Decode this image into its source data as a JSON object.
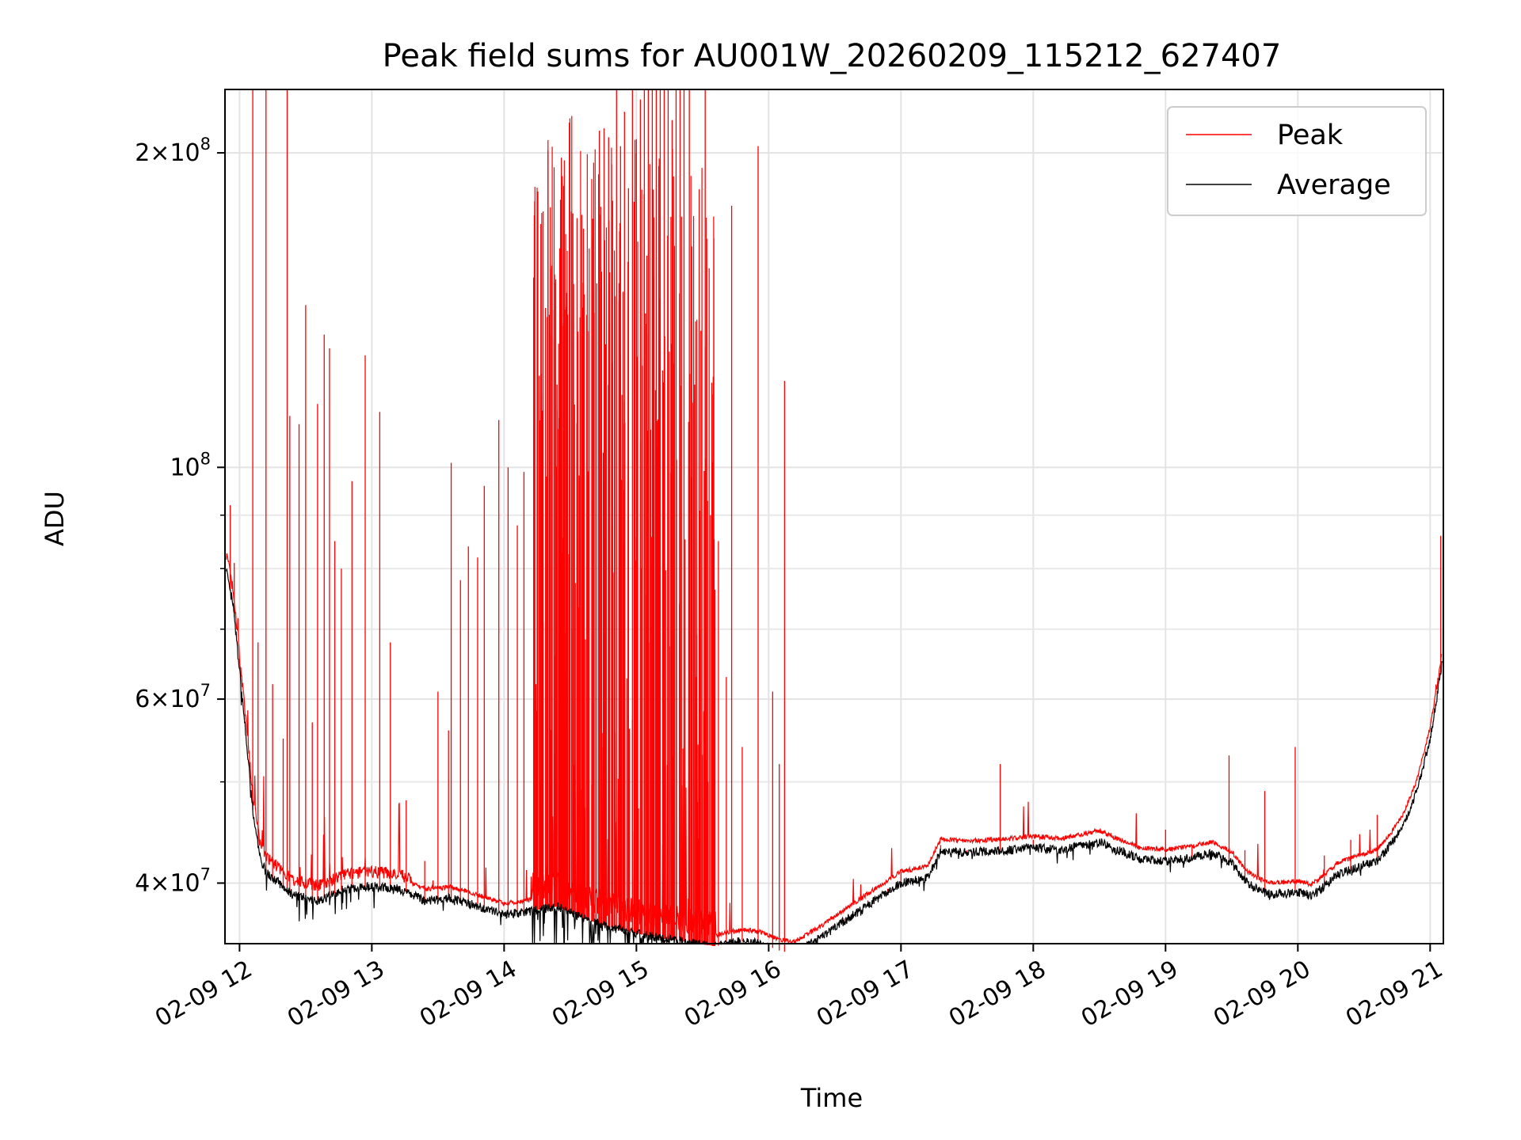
{
  "chart_data": {
    "type": "line",
    "title": "Peak field sums for AU001W_20260209_115212_627407",
    "xlabel": "Time",
    "ylabel": "ADU",
    "yscale": "log",
    "grid": true,
    "legend_position": "top-right",
    "xlim": [
      11.89,
      21.1
    ],
    "ylim": [
      35000000,
      230000000
    ],
    "x_tick_values": [
      12,
      13,
      14,
      15,
      16,
      17,
      18,
      19,
      20,
      21
    ],
    "x_tick_labels": [
      "02-09 12",
      "02-09 13",
      "02-09 14",
      "02-09 15",
      "02-09 16",
      "02-09 17",
      "02-09 18",
      "02-09 19",
      "02-09 20",
      "02-09 21"
    ],
    "y_major_ticks": [
      {
        "value": 40000000,
        "mantissa": "4",
        "exponent": "7"
      },
      {
        "value": 60000000,
        "mantissa": "6",
        "exponent": "7"
      },
      {
        "value": 100000000,
        "mantissa": "",
        "exponent": "8"
      },
      {
        "value": 200000000,
        "mantissa": "2",
        "exponent": "8"
      }
    ],
    "y_minor_ticks": [
      50000000,
      70000000,
      80000000,
      90000000
    ],
    "series": [
      {
        "name": "Average",
        "label": "Average",
        "color": "#000000",
        "baseline": {
          "x": [
            11.9,
            11.95,
            12.0,
            12.05,
            12.1,
            12.15,
            12.2,
            12.3,
            12.4,
            12.5,
            12.6,
            12.8,
            13.0,
            13.2,
            13.4,
            13.6,
            13.8,
            14.0,
            14.2,
            14.4,
            14.6,
            14.8,
            15.0,
            15.2,
            15.4,
            15.6,
            15.8,
            15.95,
            16.1,
            16.2,
            16.4,
            16.6,
            16.8,
            17.0,
            17.2,
            17.3,
            17.5,
            17.8,
            18.0,
            18.2,
            18.4,
            18.5,
            18.6,
            18.8,
            19.0,
            19.2,
            19.35,
            19.5,
            19.6,
            19.7,
            19.8,
            19.9,
            20.0,
            20.1,
            20.2,
            20.3,
            20.4,
            20.5,
            20.6,
            20.7,
            20.8,
            20.9,
            21.0,
            21.05,
            21.1
          ],
          "y": [
            80000000,
            74000000,
            64000000,
            55000000,
            47000000,
            42500000,
            41000000,
            40000000,
            39000000,
            38700000,
            38500000,
            39500000,
            39700000,
            39500000,
            38500000,
            38700000,
            38000000,
            37300000,
            37600000,
            38000000,
            37000000,
            36300000,
            35800000,
            35400000,
            35100000,
            34800000,
            35200000,
            35000000,
            34400000,
            34300000,
            35500000,
            37000000,
            38500000,
            40000000,
            40500000,
            43000000,
            42800000,
            43000000,
            43300000,
            43000000,
            43500000,
            43800000,
            43200000,
            42200000,
            42000000,
            42300000,
            42700000,
            41800000,
            40200000,
            39400000,
            39000000,
            39100000,
            39200000,
            38900000,
            39700000,
            40800000,
            41200000,
            41600000,
            42000000,
            43500000,
            45500000,
            49000000,
            55000000,
            60000000,
            66000000
          ]
        }
      },
      {
        "name": "Peak",
        "label": "Peak",
        "color": "#ff0000",
        "spikes": [
          {
            "x": 11.93,
            "y": 92000000
          },
          {
            "x": 11.96,
            "y": 81000000
          },
          {
            "x": 12.1,
            "y": 230000000
          },
          {
            "x": 12.14,
            "y": 68000000
          },
          {
            "x": 12.2,
            "y": 230000000
          },
          {
            "x": 12.25,
            "y": 62000000
          },
          {
            "x": 12.33,
            "y": 55000000
          },
          {
            "x": 12.36,
            "y": 230000000
          },
          {
            "x": 12.38,
            "y": 112000000
          },
          {
            "x": 12.45,
            "y": 110000000
          },
          {
            "x": 12.5,
            "y": 143000000
          },
          {
            "x": 12.55,
            "y": 57000000
          },
          {
            "x": 12.59,
            "y": 115000000
          },
          {
            "x": 12.64,
            "y": 134000000
          },
          {
            "x": 12.68,
            "y": 130000000
          },
          {
            "x": 12.72,
            "y": 85000000
          },
          {
            "x": 12.77,
            "y": 80000000
          },
          {
            "x": 12.85,
            "y": 97000000
          },
          {
            "x": 12.95,
            "y": 128000000
          },
          {
            "x": 13.06,
            "y": 113000000
          },
          {
            "x": 13.14,
            "y": 68000000
          },
          {
            "x": 13.26,
            "y": 48000000
          },
          {
            "x": 13.4,
            "y": 42000000
          },
          {
            "x": 13.5,
            "y": 61000000
          },
          {
            "x": 13.58,
            "y": 56000000
          },
          {
            "x": 13.6,
            "y": 101000000
          },
          {
            "x": 13.67,
            "y": 78000000
          },
          {
            "x": 13.73,
            "y": 84000000
          },
          {
            "x": 13.8,
            "y": 82000000
          },
          {
            "x": 13.85,
            "y": 96000000
          },
          {
            "x": 13.96,
            "y": 111000000
          },
          {
            "x": 14.03,
            "y": 100000000
          },
          {
            "x": 14.1,
            "y": 88000000
          },
          {
            "x": 14.15,
            "y": 99000000
          },
          {
            "x": 14.24,
            "y": 62000000
          },
          {
            "x": 14.28,
            "y": 66000000
          },
          {
            "x": 14.32,
            "y": 98000000
          },
          {
            "x": 14.36,
            "y": 156000000
          },
          {
            "x": 14.4,
            "y": 120000000
          },
          {
            "x": 14.44,
            "y": 190000000
          },
          {
            "x": 14.48,
            "y": 140000000
          },
          {
            "x": 14.52,
            "y": 175000000
          },
          {
            "x": 14.55,
            "y": 110000000
          },
          {
            "x": 14.6,
            "y": 150000000
          },
          {
            "x": 14.64,
            "y": 135000000
          },
          {
            "x": 14.67,
            "y": 173000000
          },
          {
            "x": 14.7,
            "y": 150000000
          },
          {
            "x": 14.72,
            "y": 210000000
          },
          {
            "x": 14.76,
            "y": 165000000
          },
          {
            "x": 14.79,
            "y": 207000000
          },
          {
            "x": 14.82,
            "y": 180000000
          },
          {
            "x": 14.85,
            "y": 230000000
          },
          {
            "x": 14.88,
            "y": 203000000
          },
          {
            "x": 14.91,
            "y": 219000000
          },
          {
            "x": 14.94,
            "y": 185000000
          },
          {
            "x": 14.97,
            "y": 230000000
          },
          {
            "x": 15.0,
            "y": 200000000
          },
          {
            "x": 15.03,
            "y": 225000000
          },
          {
            "x": 15.06,
            "y": 230000000
          },
          {
            "x": 15.09,
            "y": 230000000
          },
          {
            "x": 15.12,
            "y": 230000000
          },
          {
            "x": 15.15,
            "y": 230000000
          },
          {
            "x": 15.18,
            "y": 230000000
          },
          {
            "x": 15.21,
            "y": 230000000
          },
          {
            "x": 15.24,
            "y": 230000000
          },
          {
            "x": 15.27,
            "y": 215000000
          },
          {
            "x": 15.3,
            "y": 230000000
          },
          {
            "x": 15.33,
            "y": 230000000
          },
          {
            "x": 15.36,
            "y": 230000000
          },
          {
            "x": 15.4,
            "y": 230000000
          },
          {
            "x": 15.44,
            "y": 120000000
          },
          {
            "x": 15.48,
            "y": 70000000
          },
          {
            "x": 15.52,
            "y": 230000000
          },
          {
            "x": 15.56,
            "y": 90000000
          },
          {
            "x": 15.62,
            "y": 85000000
          },
          {
            "x": 15.68,
            "y": 63000000
          },
          {
            "x": 15.72,
            "y": 178000000
          },
          {
            "x": 15.8,
            "y": 54000000
          },
          {
            "x": 15.92,
            "y": 203000000
          },
          {
            "x": 16.03,
            "y": 61000000
          },
          {
            "x": 16.08,
            "y": 52000000
          },
          {
            "x": 16.12,
            "y": 121000000
          },
          {
            "x": 16.57,
            "y": 37000000
          },
          {
            "x": 16.75,
            "y": 38500000
          },
          {
            "x": 16.9,
            "y": 39500000
          },
          {
            "x": 17.0,
            "y": 41000000
          },
          {
            "x": 17.3,
            "y": 43500000
          },
          {
            "x": 17.5,
            "y": 43000000
          },
          {
            "x": 17.75,
            "y": 52000000
          },
          {
            "x": 18.0,
            "y": 44000000
          },
          {
            "x": 18.5,
            "y": 44000000
          },
          {
            "x": 19.0,
            "y": 45000000
          },
          {
            "x": 19.2,
            "y": 43500000
          },
          {
            "x": 19.48,
            "y": 53000000
          },
          {
            "x": 19.6,
            "y": 43000000
          },
          {
            "x": 19.75,
            "y": 49000000
          },
          {
            "x": 19.98,
            "y": 54000000
          },
          {
            "x": 20.2,
            "y": 42500000
          },
          {
            "x": 20.4,
            "y": 44000000
          },
          {
            "x": 20.6,
            "y": 46500000
          },
          {
            "x": 21.08,
            "y": 86000000
          }
        ]
      }
    ]
  }
}
